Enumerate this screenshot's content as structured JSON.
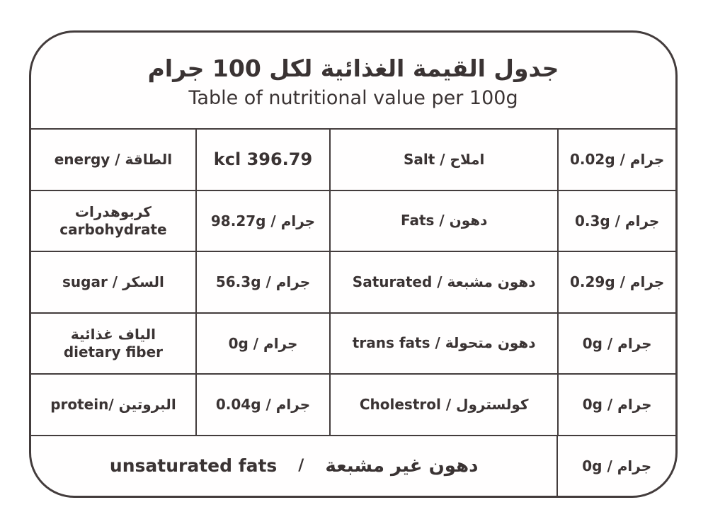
{
  "colors": {
    "text": "#3a3333",
    "border": "#433c3c",
    "background": "#ffffff"
  },
  "header": {
    "title_ar": "جدول القيمة الغذائية لكل 100 جرام",
    "title_en": "Table of nutritional value per 100g"
  },
  "rows": [
    {
      "left_label": "energy / الطاقة",
      "left_label2": "",
      "left_value": "kcl 396.79",
      "right_label": "Salt / املاح",
      "right_value": "0.02g / جرام"
    },
    {
      "left_label": "كربوهدرات",
      "left_label2": "carbohydrate",
      "left_value": "98.27g / جرام",
      "right_label": "Fats / دهون",
      "right_value": "0.3g / جرام"
    },
    {
      "left_label": "sugar / السكر",
      "left_label2": "",
      "left_value": "56.3g / جرام",
      "right_label": "Saturated / دهون مشبعة",
      "right_value": "0.29g / جرام"
    },
    {
      "left_label": "الياف غذائية",
      "left_label2": "dietary fiber",
      "left_value": "0g / جرام",
      "right_label": "trans fats / دهون متحولة",
      "right_value": "0g / جرام"
    },
    {
      "left_label": "protein/ البروتين",
      "left_label2": "",
      "left_value": "0.04g / جرام",
      "right_label": "Cholestrol / كولسترول",
      "right_value": "0g / جرام"
    }
  ],
  "footer": {
    "label_en": "unsaturated fats",
    "separator": "/",
    "label_ar": "دهون غير مشبعة",
    "value": "0g / جرام"
  }
}
